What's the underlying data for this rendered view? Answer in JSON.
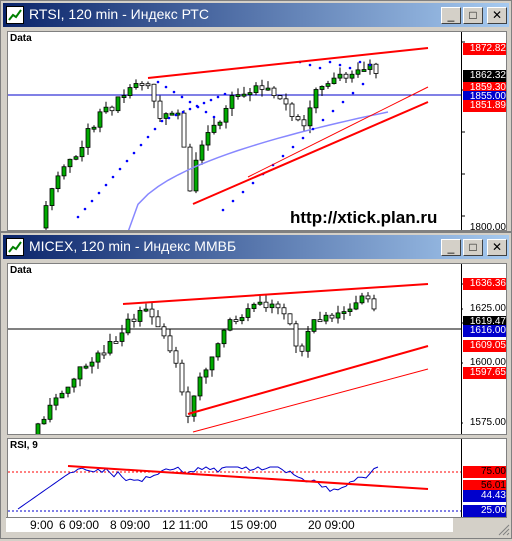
{
  "top_window": {
    "title": "RTSI, 120 min - Индекс РТС",
    "pane_label": "Data",
    "watermark": "http://xtick.plan.ru",
    "price_labels": [
      {
        "text": "1872.82",
        "bg": "#ff0000",
        "color": "#ffffff"
      },
      {
        "text": "1862.32",
        "bg": "#000000",
        "color": "#ffffff"
      },
      {
        "text": "1859.30",
        "bg": "#ff0000",
        "color": "#ffffff"
      },
      {
        "text": "1855.00",
        "bg": "#0000cc",
        "color": "#ffffff"
      },
      {
        "text": "1851.89",
        "bg": "#ff0000",
        "color": "#ffffff"
      },
      {
        "text": "1800.00",
        "bg": "#ffffff",
        "color": "#000000"
      }
    ]
  },
  "bottom_window": {
    "title": "MICEX, 120 min - Индекс ММВБ",
    "pane_label": "Data",
    "price_labels": [
      {
        "text": "1636.36",
        "bg": "#ff0000",
        "color": "#ffffff"
      },
      {
        "text": "1625.00",
        "bg": "#ffffff",
        "color": "#000000"
      },
      {
        "text": "1619.47",
        "bg": "#000000",
        "color": "#ffffff"
      },
      {
        "text": "1616.00",
        "bg": "#0000cc",
        "color": "#ffffff"
      },
      {
        "text": "1609.05",
        "bg": "#ff0000",
        "color": "#ffffff"
      },
      {
        "text": "1600.00",
        "bg": "#ffffff",
        "color": "#000000"
      },
      {
        "text": "1597.65",
        "bg": "#ff0000",
        "color": "#ffffff"
      },
      {
        "text": "1575.00",
        "bg": "#ffffff",
        "color": "#000000"
      }
    ],
    "rsi": {
      "label": "RSI, 9",
      "labels": [
        {
          "text": "75.00",
          "bg": "#ff0000",
          "color": "#000000"
        },
        {
          "text": "56.01",
          "bg": "#ff0000",
          "color": "#000000"
        },
        {
          "text": "44.43",
          "bg": "#0000cc",
          "color": "#ffffff"
        },
        {
          "text": "25.00",
          "bg": "#0000cc",
          "color": "#ffffff"
        }
      ]
    },
    "time_labels": [
      "9:00",
      "6 09:00",
      "8 09:00",
      "12 11:00",
      "15 09:00",
      "20 09:00"
    ]
  },
  "icons": {
    "minimize": "minimize-icon",
    "maximize": "maximize-icon",
    "close": "close-icon"
  },
  "colors": {
    "bull": "#00aa00",
    "bear": "#000000",
    "trend": "#ff0000",
    "ma": "#8888ff",
    "sar": "#0000ff"
  }
}
